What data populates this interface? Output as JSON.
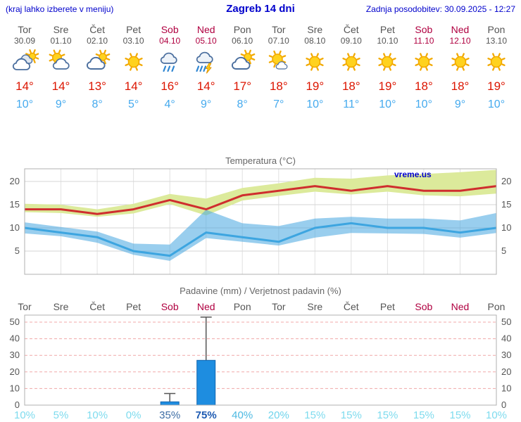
{
  "header": {
    "left_note": "(kraj lahko izberete v meniju)",
    "title": "Zagreb 14 dni",
    "updated": "Zadnja posodobitev: 30.09.2025 - 12:27"
  },
  "colors": {
    "accent_blue": "#0000cc",
    "day_red": "#b00040",
    "high_red": "#dc1500",
    "low_blue": "#45aaee"
  },
  "days": [
    {
      "day": "Tor",
      "date": "30.09",
      "icon": "cloudy",
      "high": "14°",
      "low": "10°",
      "red": false
    },
    {
      "day": "Sre",
      "date": "01.10",
      "icon": "partly-cloudy",
      "high": "14°",
      "low": "9°",
      "red": false
    },
    {
      "day": "Čet",
      "date": "02.10",
      "icon": "mostly-cloudy",
      "high": "13°",
      "low": "8°",
      "red": false
    },
    {
      "day": "Pet",
      "date": "03.10",
      "icon": "sunny",
      "high": "14°",
      "low": "5°",
      "red": false
    },
    {
      "day": "Sob",
      "date": "04.10",
      "icon": "rain",
      "high": "16°",
      "low": "4°",
      "red": true
    },
    {
      "day": "Ned",
      "date": "05.10",
      "icon": "storm",
      "high": "14°",
      "low": "9°",
      "red": true
    },
    {
      "day": "Pon",
      "date": "06.10",
      "icon": "mostly-cloudy",
      "high": "17°",
      "low": "8°",
      "red": false
    },
    {
      "day": "Tor",
      "date": "07.10",
      "icon": "mostly-sunny",
      "high": "18°",
      "low": "7°",
      "red": false
    },
    {
      "day": "Sre",
      "date": "08.10",
      "icon": "sunny",
      "high": "19°",
      "low": "10°",
      "red": false
    },
    {
      "day": "Čet",
      "date": "09.10",
      "icon": "sunny",
      "high": "18°",
      "low": "11°",
      "red": false
    },
    {
      "day": "Pet",
      "date": "10.10",
      "icon": "sunny",
      "high": "19°",
      "low": "10°",
      "red": false
    },
    {
      "day": "Sob",
      "date": "11.10",
      "icon": "sunny",
      "high": "18°",
      "low": "10°",
      "red": true
    },
    {
      "day": "Ned",
      "date": "12.10",
      "icon": "sunny",
      "high": "18°",
      "low": "9°",
      "red": true
    },
    {
      "day": "Pon",
      "date": "13.10",
      "icon": "sunny",
      "high": "19°",
      "low": "10°",
      "red": false
    }
  ],
  "chart_data": [
    {
      "type": "line",
      "title": "Temperatura (°C)",
      "watermark": "vreme.us",
      "categories": [
        "30.09",
        "01.10",
        "02.10",
        "03.10",
        "04.10",
        "05.10",
        "06.10",
        "07.10",
        "08.10",
        "09.10",
        "10.10",
        "11.10",
        "12.10",
        "13.10"
      ],
      "yticks": [
        5,
        10,
        15,
        20
      ],
      "ylim": [
        0,
        22.7
      ],
      "grid": true,
      "band_colors": {
        "max": "#dcea9b",
        "min": "rgba(70,165,224,0.55)"
      },
      "series": [
        {
          "name": "max",
          "color": "#cf2e2e",
          "values": [
            14,
            14,
            13,
            14,
            16,
            14,
            17,
            18,
            19,
            18,
            19,
            18,
            18,
            19
          ]
        },
        {
          "name": "min",
          "color": "#3da5e0",
          "values": [
            10,
            9,
            8,
            5,
            4,
            9,
            8,
            7,
            10,
            11,
            10,
            10,
            9,
            10
          ]
        },
        {
          "name": "max_range_upper",
          "color": "#dcea9b",
          "values": [
            15.2,
            15,
            14,
            15.2,
            17.3,
            16.3,
            18.6,
            19.6,
            20.8,
            20.6,
            21.3,
            21.6,
            22,
            22.5
          ]
        },
        {
          "name": "max_range_lower",
          "color": "#dcea9b",
          "values": [
            13.4,
            13.2,
            12.4,
            13.1,
            15.1,
            12.7,
            15.9,
            16.9,
            17.8,
            17.2,
            17.8,
            17,
            16.8,
            17.4
          ]
        },
        {
          "name": "min_range_upper",
          "color": "#a9d9f2",
          "values": [
            11.2,
            10.2,
            9.2,
            6.6,
            6.4,
            13.9,
            11,
            10.4,
            12,
            12.4,
            12,
            12,
            11.6,
            13.2
          ]
        },
        {
          "name": "min_range_lower",
          "color": "#a9d9f2",
          "values": [
            8.8,
            8.2,
            6.8,
            4.2,
            2.9,
            7.8,
            7,
            6.2,
            7.9,
            8.9,
            8.8,
            8.7,
            7.9,
            8.9
          ]
        }
      ]
    },
    {
      "type": "bar",
      "title": "Padavine (mm) / Verjetnost padavin (%)",
      "categories": [
        "Tor",
        "Sre",
        "Čet",
        "Pet",
        "Sob",
        "Ned",
        "Pon",
        "Tor",
        "Sre",
        "Čet",
        "Pet",
        "Sob",
        "Ned",
        "Pon"
      ],
      "red_days": [
        4,
        5,
        11,
        12
      ],
      "values": [
        0,
        0,
        0,
        0,
        2,
        27,
        0,
        0,
        0,
        0,
        0,
        0,
        0,
        0
      ],
      "max_values": [
        0,
        0,
        0,
        0,
        7,
        53,
        0,
        0,
        0,
        0,
        0,
        0,
        0,
        0
      ],
      "yticks": [
        0,
        10,
        20,
        30,
        40,
        50
      ],
      "ylim": [
        0,
        54
      ],
      "bar_color": "#1e8de0",
      "bar_stroke": "#1266b0",
      "whisker_color": "#555555",
      "dashed_grid_color": "#f0a8a8",
      "probabilities": [
        "10%",
        "5%",
        "10%",
        "0%",
        "35%",
        "75%",
        "40%",
        "20%",
        "15%",
        "15%",
        "15%",
        "15%",
        "15%",
        "10%"
      ],
      "prob_colors": [
        "#7edbee",
        "#7edbee",
        "#7edbee",
        "#7edbee",
        "#3d6da5",
        "#1d5ab2",
        "#4cb9e2",
        "#6fd4ec",
        "#7edbee",
        "#7edbee",
        "#7edbee",
        "#7edbee",
        "#7edbee",
        "#7edbee"
      ],
      "prob_bold": [
        false,
        false,
        false,
        false,
        false,
        true,
        false,
        false,
        false,
        false,
        false,
        false,
        false,
        false
      ]
    }
  ]
}
